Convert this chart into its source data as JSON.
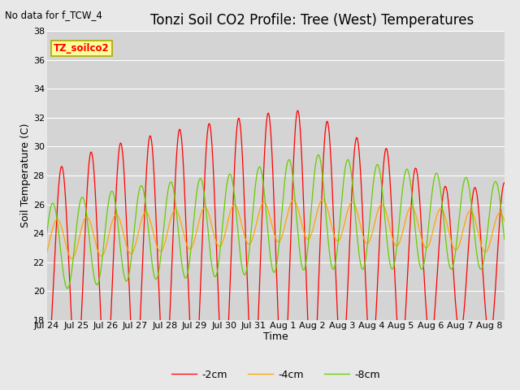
{
  "title": "Tonzi Soil CO2 Profile: Tree (West) Temperatures",
  "subtitle": "No data for f_TCW_4",
  "ylabel": "Soil Temperature (C)",
  "xlabel": "Time",
  "ylim": [
    18,
    38
  ],
  "yticks": [
    18,
    20,
    22,
    24,
    26,
    28,
    30,
    32,
    34,
    36,
    38
  ],
  "series_colors": [
    "#ff0000",
    "#ffa500",
    "#66cc00"
  ],
  "series_labels": [
    "-2cm",
    "-4cm",
    "-8cm"
  ],
  "legend_label": "TZ_soilco2",
  "bg_color": "#e8e8e8",
  "plot_bg_color": "#d4d4d4",
  "x_tick_labels": [
    "Jul 24",
    "Jul 25",
    "Jul 26",
    "Jul 27",
    "Jul 28",
    "Jul 29",
    "Jul 30",
    "Jul 31",
    "Aug 1",
    "Aug 2",
    "Aug 3",
    "Aug 4",
    "Aug 5",
    "Aug 6",
    "Aug 7",
    "Aug 8"
  ],
  "title_fontsize": 12,
  "axis_fontsize": 9,
  "tick_fontsize": 8
}
